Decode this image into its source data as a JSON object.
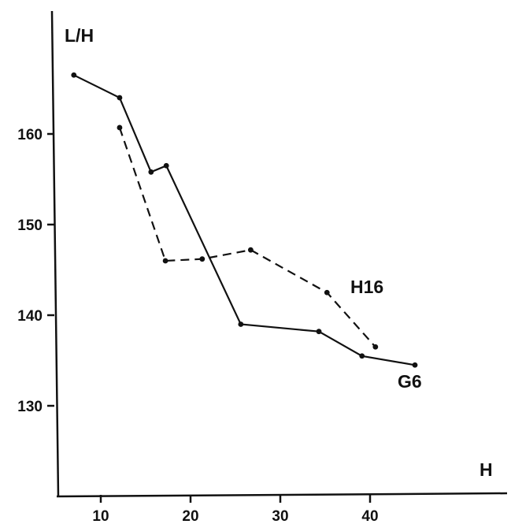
{
  "chart_data": {
    "type": "line",
    "xlabel": "H",
    "ylabel": "L/H",
    "x_ticks": [
      10,
      20,
      30,
      40
    ],
    "y_ticks": [
      130,
      140,
      150,
      160
    ],
    "grid": false,
    "series": [
      {
        "name": "G6",
        "style": "solid",
        "x": [
          7,
          12.1,
          15.6,
          17.3,
          25.6,
          34.3,
          39.1,
          45
        ],
        "y": [
          166.5,
          164,
          155.8,
          156.5,
          139,
          138.2,
          135.5,
          134.5
        ]
      },
      {
        "name": "H16",
        "style": "dashed",
        "x": [
          12.1,
          17.2,
          21.3,
          26.7,
          35.2,
          40.6
        ],
        "y": [
          160.7,
          146,
          146.2,
          147.2,
          142.5,
          136.5
        ]
      }
    ],
    "colors": {
      "line": "#111111",
      "marker": "#111111"
    }
  }
}
